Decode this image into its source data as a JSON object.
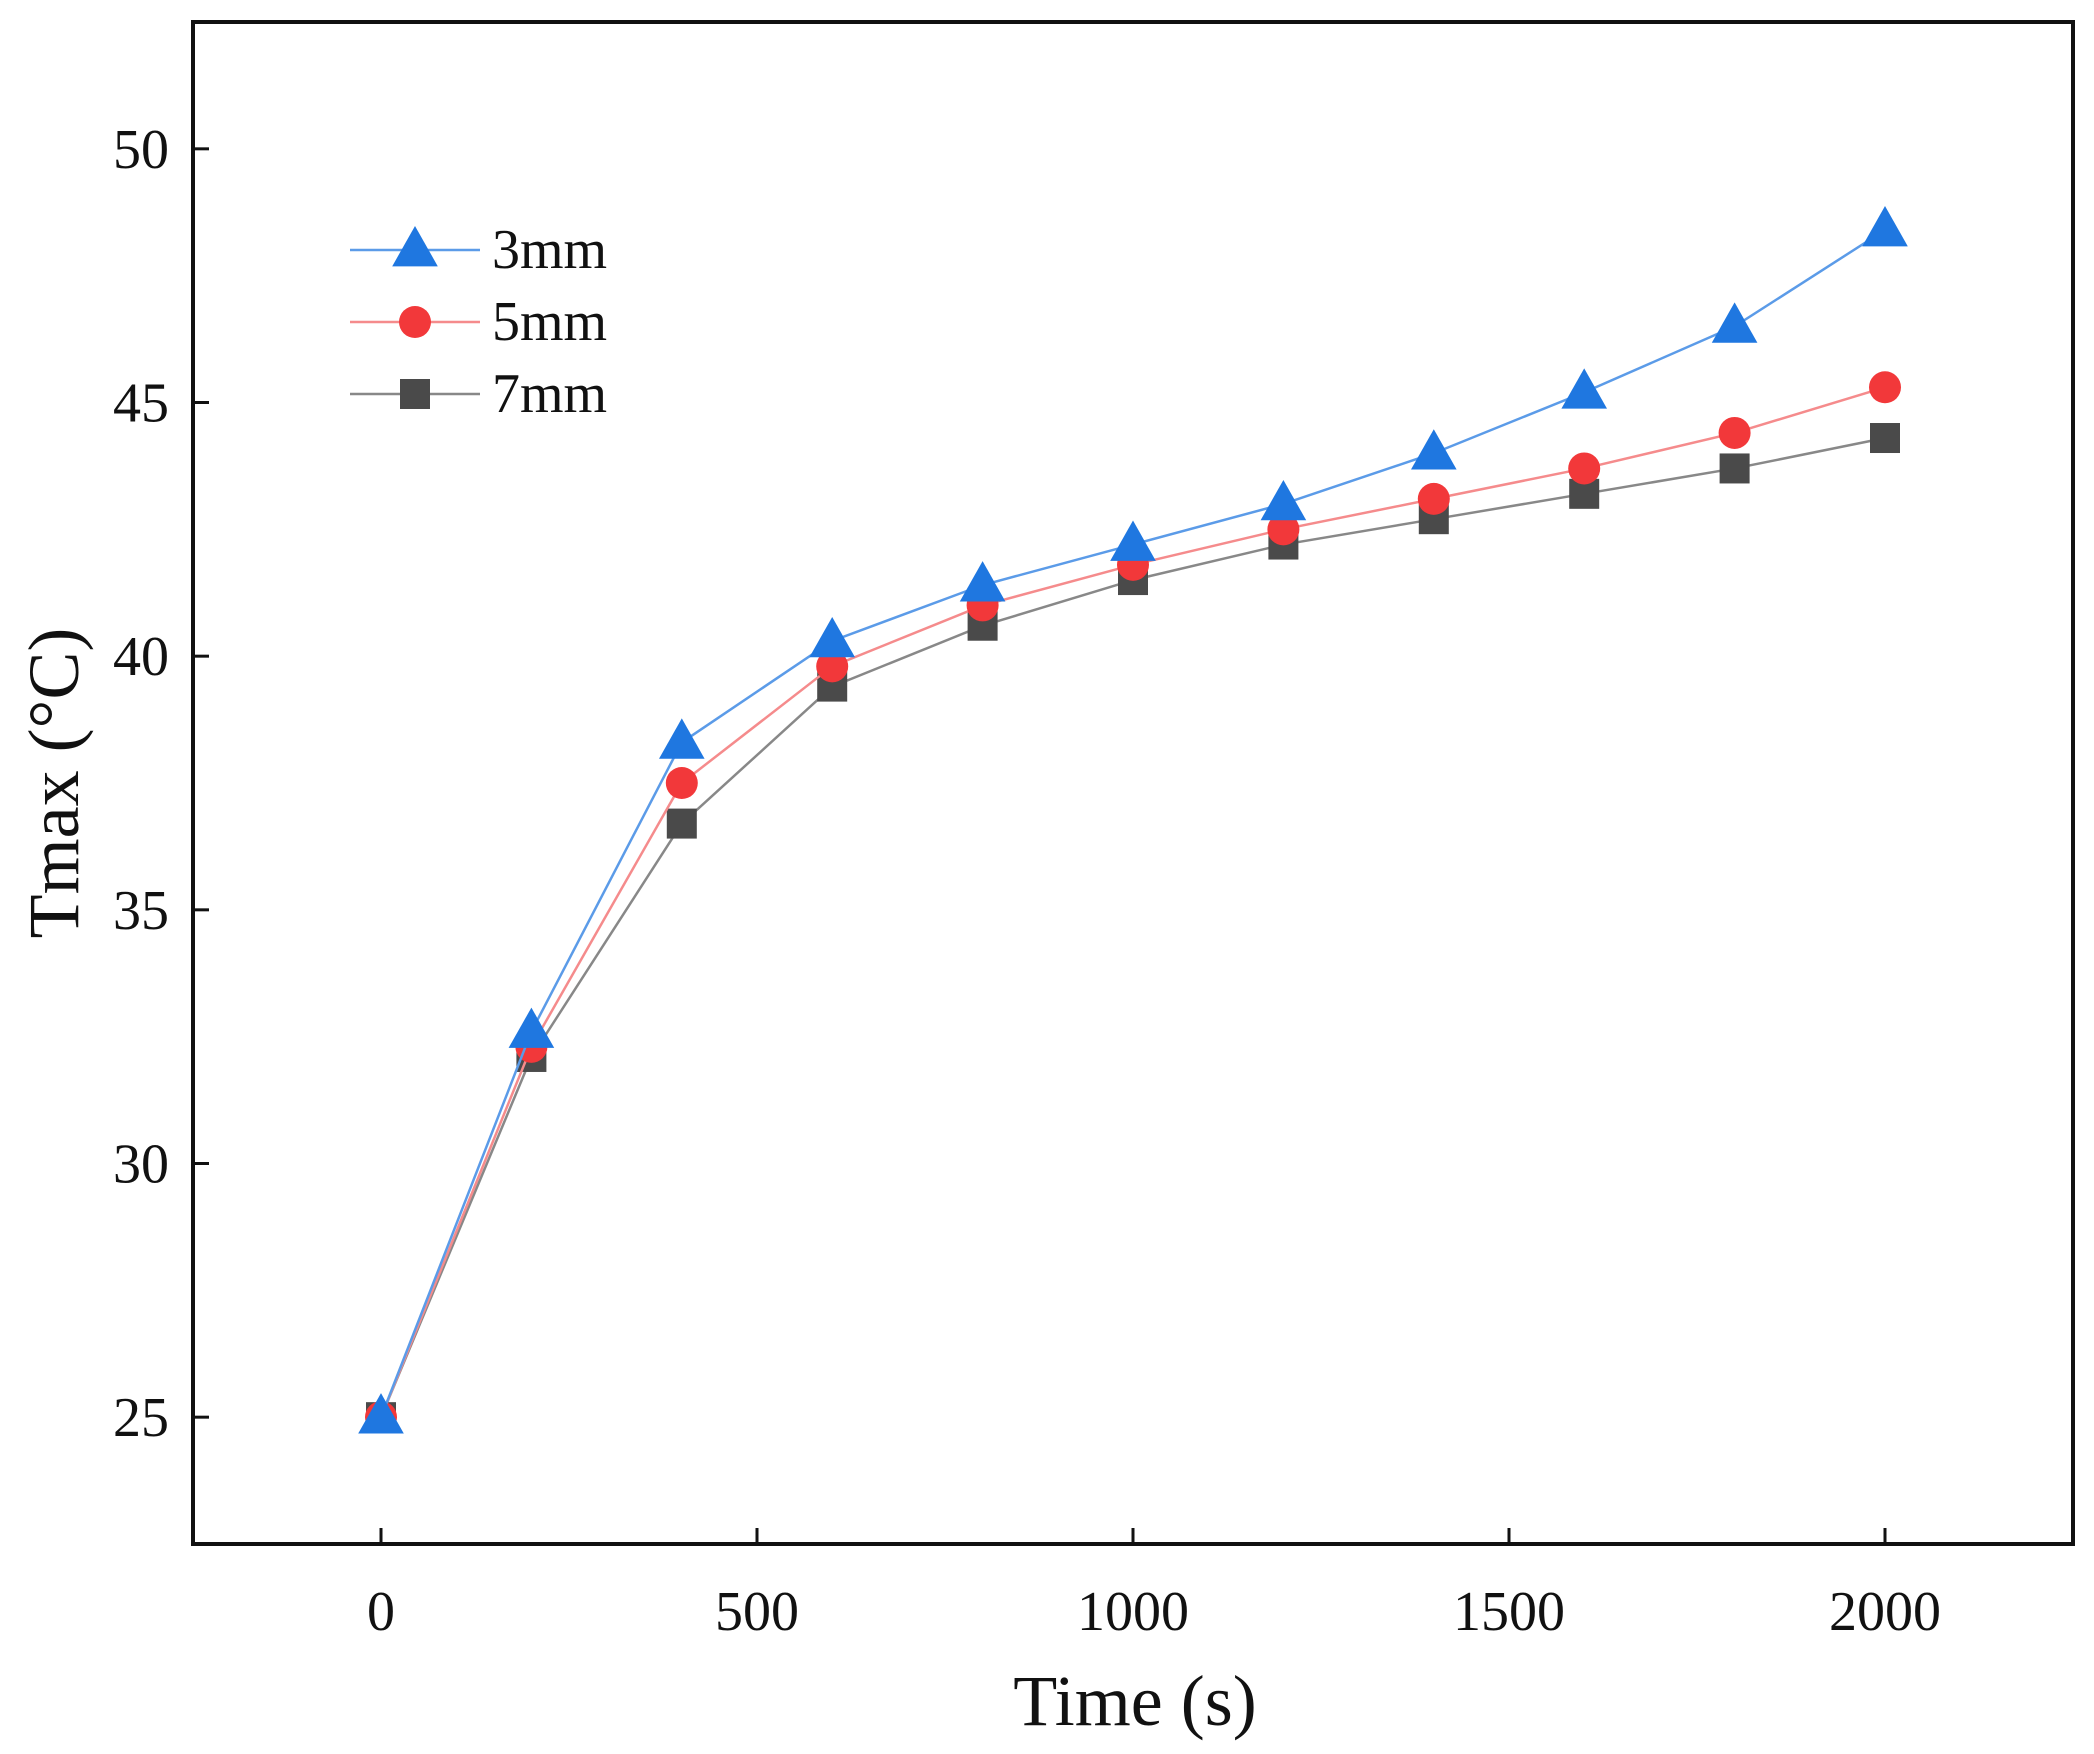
{
  "chart_data": {
    "type": "line",
    "title": "",
    "xlabel": "Time (s)",
    "ylabel": "Tmax (°C)",
    "xlim": [
      -250,
      2250
    ],
    "ylim": [
      22.5,
      52.5
    ],
    "xticks": [
      0,
      500,
      1000,
      1500,
      2000
    ],
    "yticks": [
      25,
      30,
      35,
      40,
      45,
      50
    ],
    "xtick_labels": [
      "0",
      "500",
      "1000",
      "1500",
      "2000"
    ],
    "ytick_labels": [
      "25",
      "30",
      "35",
      "40",
      "45",
      "50"
    ],
    "grid": false,
    "legend_position": "top-left",
    "x": [
      0,
      200,
      400,
      600,
      800,
      1000,
      1200,
      1400,
      1600,
      1800,
      2000
    ],
    "series": [
      {
        "name": "3mm",
        "marker": "triangle",
        "color": "#1f77e0",
        "line_color": "#5b9be8",
        "values": [
          25.0,
          32.6,
          38.3,
          40.3,
          41.4,
          42.2,
          43.0,
          44.0,
          45.2,
          46.5,
          48.4
        ]
      },
      {
        "name": "5mm",
        "marker": "circle",
        "color": "#f2383a",
        "line_color": "#f58b8c",
        "values": [
          25.0,
          32.3,
          37.5,
          39.8,
          41.0,
          41.8,
          42.5,
          43.1,
          43.7,
          44.4,
          45.3
        ]
      },
      {
        "name": "7mm",
        "marker": "square",
        "color": "#4a4a4a",
        "line_color": "#888888",
        "values": [
          25.0,
          32.1,
          36.7,
          39.4,
          40.6,
          41.5,
          42.2,
          42.7,
          43.2,
          43.7,
          44.3
        ]
      }
    ]
  }
}
